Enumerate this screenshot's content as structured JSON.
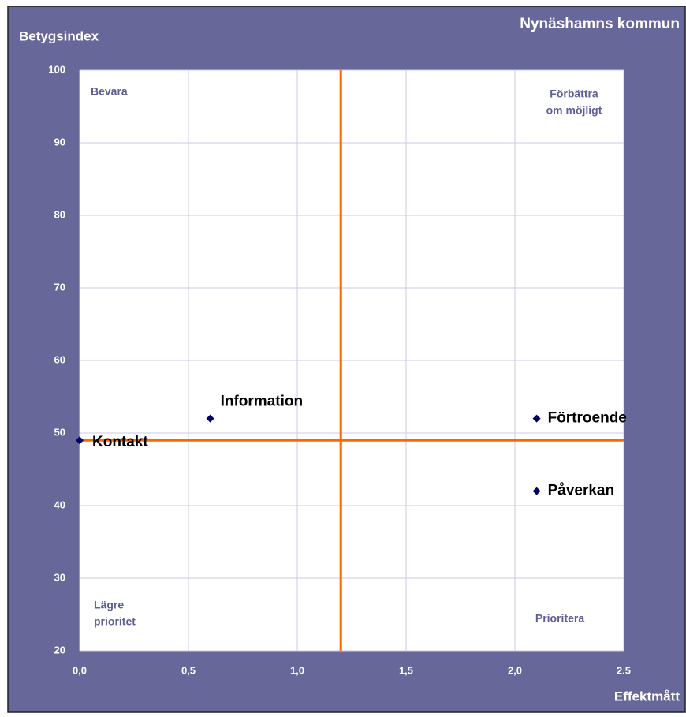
{
  "chart_data": {
    "type": "scatter",
    "title": "Nynäshamns kommun",
    "y_label": "Betygsindex",
    "x_label": "Effektmått",
    "xlim": [
      0,
      2.5
    ],
    "ylim": [
      20,
      100
    ],
    "xticks": [
      {
        "value": 0,
        "label": "0,0"
      },
      {
        "value": 0.5,
        "label": "0,5"
      },
      {
        "value": 1,
        "label": "1,0"
      },
      {
        "value": 1.5,
        "label": "1,5"
      },
      {
        "value": 2,
        "label": "2,0"
      },
      {
        "value": 2.5,
        "label": "2.5"
      }
    ],
    "yticks": [
      20,
      30,
      40,
      50,
      60,
      70,
      80,
      90,
      100
    ],
    "grid": true,
    "color": "#000066",
    "reference_lines": {
      "x": 1.2,
      "y": 49,
      "color": "#ff6600"
    },
    "points": [
      {
        "label": "Kontakt",
        "x": 0,
        "y": 49
      },
      {
        "label": "Information",
        "x": 0.6,
        "y": 52
      },
      {
        "label": "Förtroende",
        "x": 2.1,
        "y": 52
      },
      {
        "label": "Påverkan",
        "x": 2.1,
        "y": 42
      }
    ],
    "quadrant_labels": {
      "top_left": [
        "Bevara"
      ],
      "top_right": [
        "Förbättra",
        "om möjligt"
      ],
      "bottom_left": [
        "Lägre",
        "prioritet"
      ],
      "bottom_right": [
        "Prioritera"
      ]
    }
  }
}
